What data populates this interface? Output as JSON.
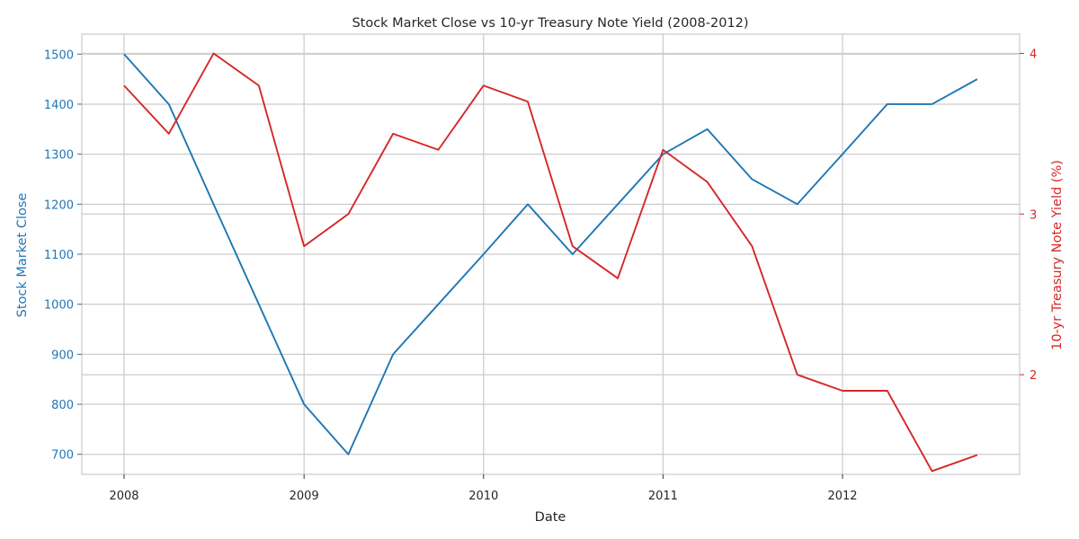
{
  "chart_data": {
    "type": "line",
    "title": "Stock Market Close vs 10-yr Treasury Note Yield (2008-2012)",
    "xlabel": "Date",
    "ylabel_left": "Stock Market Close",
    "ylabel_right": "10-yr Treasury Note Yield (%)",
    "x": [
      "2008-01-01",
      "2008-04-01",
      "2008-07-01",
      "2008-10-01",
      "2009-01-01",
      "2009-04-01",
      "2009-07-01",
      "2009-10-01",
      "2010-01-01",
      "2010-04-01",
      "2010-07-01",
      "2010-10-01",
      "2011-01-01",
      "2011-04-01",
      "2011-07-01",
      "2011-10-01",
      "2012-01-01",
      "2012-04-01",
      "2012-07-01",
      "2012-10-01"
    ],
    "x_ticks": [
      "2008",
      "2009",
      "2010",
      "2011",
      "2012"
    ],
    "y_left_ticks": [
      700,
      800,
      900,
      1000,
      1100,
      1200,
      1300,
      1400,
      1500
    ],
    "y_right_ticks": [
      2,
      3,
      4
    ],
    "ylim_left": [
      660,
      1540
    ],
    "ylim_right": [
      1.38,
      4.12
    ],
    "grid": true,
    "colors": {
      "stock": "#1f77b4",
      "yield": "#d62728",
      "grid": "#cccccc",
      "axis_text": "#262626"
    },
    "series": [
      {
        "name": "Stock Market Close",
        "axis": "left",
        "values": [
          1500,
          1400,
          1200,
          1000,
          800,
          700,
          900,
          1000,
          1100,
          1200,
          1100,
          1200,
          1300,
          1350,
          1250,
          1200,
          1300,
          1400,
          1400,
          1450
        ]
      },
      {
        "name": "10-yr Treasury Note Yield (%)",
        "axis": "right",
        "values": [
          3.8,
          3.5,
          4.0,
          3.8,
          2.8,
          3.0,
          3.5,
          3.4,
          3.8,
          3.7,
          2.8,
          2.6,
          3.4,
          3.2,
          2.8,
          2.0,
          1.9,
          1.9,
          1.4,
          1.5
        ]
      }
    ]
  }
}
